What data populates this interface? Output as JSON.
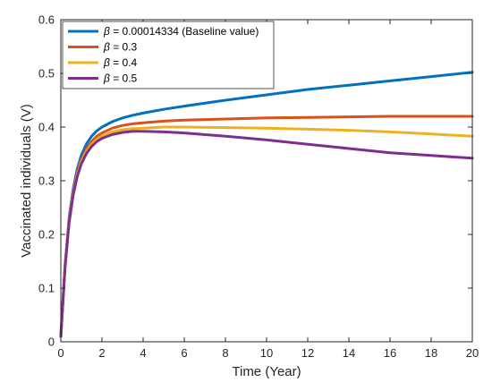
{
  "chart_data": {
    "type": "line",
    "xlabel": "Time (Year)",
    "ylabel": "Vaccinated individuals (V)",
    "xlim": [
      0,
      20
    ],
    "ylim": [
      0,
      0.6
    ],
    "xticks": [
      0,
      2,
      4,
      6,
      8,
      10,
      12,
      14,
      16,
      18,
      20
    ],
    "xtick_labels": [
      "0",
      "2",
      "4",
      "6",
      "8",
      "10",
      "12",
      "14",
      "16",
      "18",
      "20"
    ],
    "yticks": [
      0,
      0.1,
      0.2,
      0.3,
      0.4,
      0.5,
      0.6
    ],
    "ytick_labels": [
      "0",
      "0.1",
      "0.2",
      "0.3",
      "0.4",
      "0.5",
      "0.6"
    ],
    "grid": false,
    "legend_position": "top-left",
    "x": [
      0,
      0.2,
      0.4,
      0.6,
      0.8,
      1,
      1.25,
      1.5,
      1.75,
      2,
      2.5,
      3,
      3.5,
      4,
      5,
      6,
      8,
      10,
      12,
      14,
      16,
      18,
      20
    ],
    "series": [
      {
        "name": "β = 0.00014334 (Baseline value)",
        "legend_symbol": "β",
        "legend_rest": " = 0.00014334 (Baseline value)",
        "color": "#0072BD",
        "values": [
          0.01,
          0.14,
          0.23,
          0.285,
          0.322,
          0.348,
          0.369,
          0.383,
          0.393,
          0.4,
          0.41,
          0.417,
          0.422,
          0.426,
          0.433,
          0.439,
          0.45,
          0.46,
          0.47,
          0.478,
          0.486,
          0.494,
          0.502
        ]
      },
      {
        "name": "β = 0.3",
        "legend_symbol": "β",
        "legend_rest": " = 0.3",
        "color": "#D95319",
        "values": [
          0.01,
          0.138,
          0.225,
          0.279,
          0.315,
          0.34,
          0.36,
          0.373,
          0.383,
          0.389,
          0.398,
          0.403,
          0.406,
          0.408,
          0.411,
          0.413,
          0.415,
          0.417,
          0.418,
          0.419,
          0.42,
          0.42,
          0.42
        ]
      },
      {
        "name": "β = 0.4",
        "legend_symbol": "β",
        "legend_rest": " = 0.4",
        "color": "#EDB120",
        "values": [
          0.01,
          0.137,
          0.223,
          0.276,
          0.311,
          0.336,
          0.355,
          0.368,
          0.377,
          0.383,
          0.391,
          0.395,
          0.397,
          0.398,
          0.4,
          0.4,
          0.399,
          0.398,
          0.396,
          0.394,
          0.391,
          0.387,
          0.383
        ]
      },
      {
        "name": "β = 0.5",
        "legend_symbol": "β",
        "legend_rest": " = 0.5",
        "color": "#7E2F8E",
        "values": [
          0.01,
          0.136,
          0.221,
          0.273,
          0.308,
          0.332,
          0.351,
          0.364,
          0.373,
          0.379,
          0.386,
          0.39,
          0.392,
          0.392,
          0.391,
          0.389,
          0.383,
          0.376,
          0.368,
          0.36,
          0.352,
          0.347,
          0.342
        ]
      }
    ]
  }
}
